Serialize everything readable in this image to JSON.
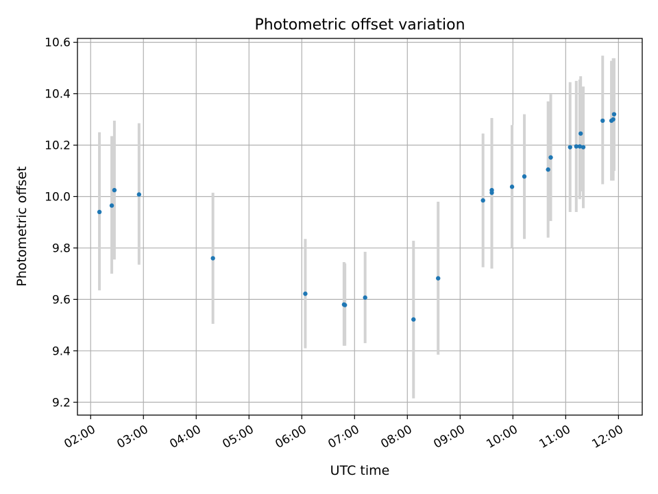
{
  "chart_data": {
    "type": "scatter",
    "title": "Photometric offset variation",
    "xlabel": "UTC time",
    "ylabel": "Photometric offset",
    "x_ticks": [
      "02:00",
      "03:00",
      "04:00",
      "05:00",
      "06:00",
      "07:00",
      "08:00",
      "09:00",
      "10:00",
      "11:00",
      "12:00"
    ],
    "y_ticks": [
      "9.2",
      "9.4",
      "9.6",
      "9.8",
      "10.0",
      "10.2",
      "10.4",
      "10.6"
    ],
    "xlim": [
      "01:45",
      "12:27"
    ],
    "ylim": [
      9.15,
      10.615
    ],
    "grid": true,
    "colors": {
      "point": "#1f77b4",
      "errorbar": "#d3d3d3",
      "grid": "#b0b0b0"
    },
    "points": [
      {
        "x": "02:10",
        "y": 9.94,
        "ylow": 9.635,
        "yhigh": 10.25
      },
      {
        "x": "02:24",
        "y": 9.965,
        "ylow": 9.7,
        "yhigh": 10.235
      },
      {
        "x": "02:27",
        "y": 10.025,
        "ylow": 9.755,
        "yhigh": 10.295
      },
      {
        "x": "02:55",
        "y": 10.008,
        "ylow": 9.735,
        "yhigh": 10.285
      },
      {
        "x": "04:19",
        "y": 9.76,
        "ylow": 9.505,
        "yhigh": 10.015
      },
      {
        "x": "06:04",
        "y": 9.622,
        "ylow": 9.41,
        "yhigh": 9.835
      },
      {
        "x": "06:48",
        "y": 9.58,
        "ylow": 9.42,
        "yhigh": 9.745
      },
      {
        "x": "06:49",
        "y": 9.578,
        "ylow": 9.42,
        "yhigh": 9.74
      },
      {
        "x": "07:12",
        "y": 9.607,
        "ylow": 9.43,
        "yhigh": 9.785
      },
      {
        "x": "08:07",
        "y": 9.522,
        "ylow": 9.215,
        "yhigh": 9.828
      },
      {
        "x": "08:35",
        "y": 9.682,
        "ylow": 9.385,
        "yhigh": 9.98
      },
      {
        "x": "09:26",
        "y": 9.985,
        "ylow": 9.725,
        "yhigh": 10.245
      },
      {
        "x": "09:36",
        "y": 10.025,
        "ylow": 9.72,
        "yhigh": 10.305
      },
      {
        "x": "09:36",
        "y": 10.015,
        "ylow": 9.72,
        "yhigh": 10.305
      },
      {
        "x": "09:59",
        "y": 10.038,
        "ylow": 9.8,
        "yhigh": 10.278
      },
      {
        "x": "10:13",
        "y": 10.078,
        "ylow": 9.835,
        "yhigh": 10.32
      },
      {
        "x": "10:40",
        "y": 10.105,
        "ylow": 9.84,
        "yhigh": 10.37
      },
      {
        "x": "10:43",
        "y": 10.152,
        "ylow": 9.905,
        "yhigh": 10.398
      },
      {
        "x": "11:05",
        "y": 10.192,
        "ylow": 9.94,
        "yhigh": 10.445
      },
      {
        "x": "11:12",
        "y": 10.195,
        "ylow": 9.94,
        "yhigh": 10.45
      },
      {
        "x": "11:16",
        "y": 10.195,
        "ylow": 9.99,
        "yhigh": 10.455
      },
      {
        "x": "11:17",
        "y": 10.245,
        "ylow": 10.02,
        "yhigh": 10.468
      },
      {
        "x": "11:20",
        "y": 10.192,
        "ylow": 9.955,
        "yhigh": 10.428
      },
      {
        "x": "11:42",
        "y": 10.295,
        "ylow": 10.048,
        "yhigh": 10.548
      },
      {
        "x": "11:52",
        "y": 10.295,
        "ylow": 10.062,
        "yhigh": 10.528
      },
      {
        "x": "11:54",
        "y": 10.3,
        "ylow": 10.062,
        "yhigh": 10.538
      },
      {
        "x": "11:55",
        "y": 10.32,
        "ylow": 10.1,
        "yhigh": 10.538
      }
    ]
  }
}
